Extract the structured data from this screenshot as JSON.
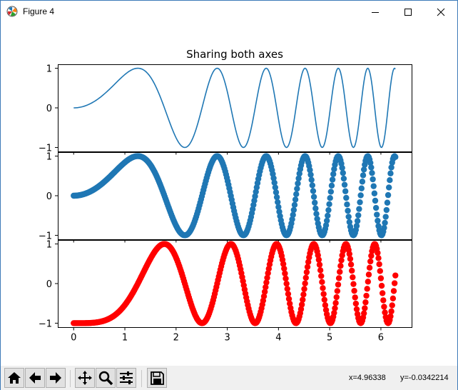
{
  "window": {
    "title": "Figure 4",
    "controls": [
      "minimize",
      "maximize",
      "close"
    ]
  },
  "toolbar": {
    "buttons": [
      {
        "name": "home-icon",
        "label": "Home"
      },
      {
        "name": "back-icon",
        "label": "Back"
      },
      {
        "name": "forward-icon",
        "label": "Forward"
      },
      {
        "name": "pan-icon",
        "label": "Pan"
      },
      {
        "name": "zoom-icon",
        "label": "Zoom"
      },
      {
        "name": "configure-subplots-icon",
        "label": "Subplots"
      },
      {
        "name": "save-icon",
        "label": "Save"
      }
    ],
    "coords": {
      "x": "x=4.96338",
      "y": "y=-0.0342214"
    }
  },
  "chart_data": {
    "type": "line",
    "title": "Sharing both axes",
    "function": "sin(x^2)",
    "x_range": [
      0,
      6.283
    ],
    "xlim": [
      -0.31,
      6.6
    ],
    "ylim": [
      -1.1,
      1.1
    ],
    "xticks": [
      "0",
      "1",
      "2",
      "3",
      "4",
      "5",
      "6"
    ],
    "yticks": [
      "-1",
      "0",
      "1"
    ],
    "panels": [
      {
        "series": "sin(x^2)",
        "style": "line",
        "color": "#1f77b4",
        "x": "linspace(0, 2*pi, 400)",
        "y": "sin(x^2)"
      },
      {
        "series": "sin(x^2)",
        "style": "markers",
        "color": "#1f77b4",
        "x": "linspace(0, 2*pi, 400)",
        "y": "sin(x^2)"
      },
      {
        "series": "sin(x^2)",
        "style": "markers",
        "color": "#ff0000",
        "x": "linspace(0, 2*pi, 400)",
        "y": "-cos(x^2)"
      }
    ]
  }
}
